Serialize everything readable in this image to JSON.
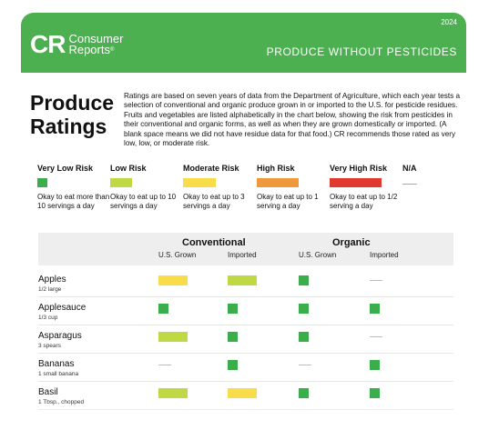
{
  "banner": {
    "year": "2024",
    "logo_mark": "CR",
    "logo_line1": "Consumer",
    "logo_line2": "Reports",
    "logo_tm": "®",
    "headline": "PRODUCE WITHOUT PESTICIDES",
    "color": "#4caf50"
  },
  "title": {
    "line1": "Produce",
    "line2": "Ratings"
  },
  "description": "Ratings are based on seven years of data from the Department of Agriculture, which each year tests a selection of conventional and organic produce grown in or imported to the U.S. for pesticide residues. Fruits and vegetables are listed alphabetically in the chart below, showing the risk from pesticides in their conventional and organic forms, as well as when they are grown domestically or imported. (A blank space means we did not have residue data for that food.) CR recommends those rated as very low, low, or moderate risk.",
  "legend": [
    {
      "label": "Very Low Risk",
      "color": "#3aae4a",
      "swatch": "square",
      "note": "Okay to eat more than 10 servings a day"
    },
    {
      "label": "Low Risk",
      "color": "#bfd944",
      "swatch": "bar",
      "note": "Okay to eat up to 10 servings a day"
    },
    {
      "label": "Moderate Risk",
      "color": "#f9dc4a",
      "swatch": "bar",
      "note": "Okay to eat up to 3 servings a day"
    },
    {
      "label": "High Risk",
      "color": "#f0983c",
      "swatch": "bar",
      "note": "Okay to eat up to 1 serving a day"
    },
    {
      "label": "Very High Risk",
      "color": "#e03a2f",
      "swatch": "bar",
      "note": "Okay to eat up to 1/2 serving a day"
    },
    {
      "label": "N/A",
      "color": "#aaaaaa",
      "swatch": "dash",
      "note": ""
    }
  ],
  "table": {
    "groups": [
      "Conventional",
      "Organic"
    ],
    "columns": [
      "U.S. Grown",
      "Imported",
      "U.S. Grown",
      "Imported"
    ],
    "rows": [
      {
        "name": "Apples",
        "serving": "1/2 large",
        "ratings": [
          "Moderate Risk",
          "Low Risk",
          "Very Low Risk",
          "N/A"
        ]
      },
      {
        "name": "Applesauce",
        "serving": "1/3 cup",
        "ratings": [
          "Very Low Risk",
          "Very Low Risk",
          "Very Low Risk",
          "Very Low Risk"
        ]
      },
      {
        "name": "Asparagus",
        "serving": "3 spears",
        "ratings": [
          "Low Risk",
          "Very Low Risk",
          "Very Low Risk",
          "N/A"
        ]
      },
      {
        "name": "Bananas",
        "serving": "1 small banana",
        "ratings": [
          "N/A",
          "Very Low Risk",
          "N/A",
          "Very Low Risk"
        ]
      },
      {
        "name": "Basil",
        "serving": "1 Tbsp., chopped",
        "ratings": [
          "Low Risk",
          "Moderate Risk",
          "Very Low Risk",
          "Very Low Risk"
        ]
      }
    ]
  }
}
